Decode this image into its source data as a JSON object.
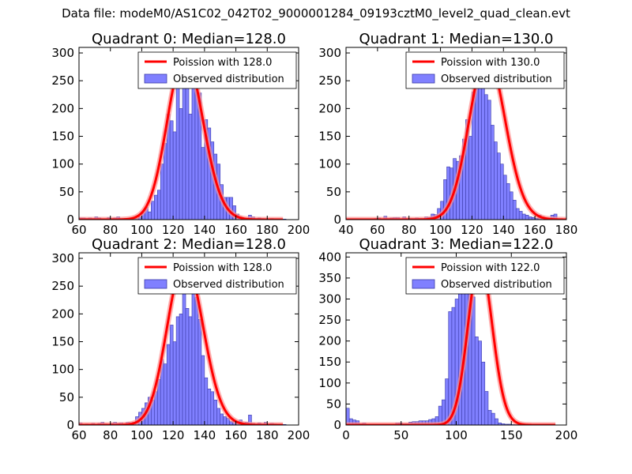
{
  "figure_title": "Data file: modeM0/AS1C02_042T02_9000001284_09193cztM0_level2_quad_clean.evt",
  "colors": {
    "bar_fill": "#8080ff",
    "bar_edge": "#3a3aa8",
    "curve": "#ff0000",
    "curve_halo": "#ff9090"
  },
  "chart_data": [
    {
      "type": "bar",
      "title": "Quadrant 0: Median=128.0",
      "xlim": [
        60,
        200
      ],
      "ylim": [
        0,
        310
      ],
      "xticks": [
        60,
        80,
        100,
        120,
        140,
        160,
        180,
        200
      ],
      "yticks": [
        0,
        50,
        100,
        150,
        200,
        250,
        300
      ],
      "legend": {
        "position": "top-right",
        "curve_label": "Poission with 128.0",
        "bar_label": "Observed distribution"
      },
      "poisson_mean": 128,
      "poisson_peak": 296,
      "bin_width": 2,
      "bins_start": 60,
      "counts": [
        3,
        3,
        2,
        3,
        2,
        5,
        3,
        1,
        1,
        4,
        2,
        3,
        5,
        2,
        2,
        2,
        2,
        1,
        2,
        5,
        12,
        22,
        14,
        33,
        44,
        53,
        100,
        137,
        190,
        178,
        158,
        247,
        200,
        300,
        260,
        190,
        258,
        290,
        228,
        130,
        180,
        165,
        140,
        118,
        100,
        63,
        40,
        40,
        40,
        25,
        10,
        5,
        3,
        2,
        8,
        5,
        2,
        3,
        2,
        1,
        1,
        2,
        1,
        1,
        1,
        1,
        0,
        0,
        0,
        0
      ]
    },
    {
      "type": "bar",
      "title": "Quadrant 1: Median=130.0",
      "xlim": [
        40,
        180
      ],
      "ylim": [
        0,
        310
      ],
      "xticks": [
        40,
        60,
        80,
        100,
        120,
        140,
        160,
        180
      ],
      "yticks": [
        0,
        50,
        100,
        150,
        200,
        250,
        300
      ],
      "legend": {
        "position": "top-right",
        "curve_label": "Poission with 130.0",
        "bar_label": "Observed distribution"
      },
      "poisson_mean": 130,
      "poisson_peak": 296,
      "bin_width": 2,
      "bins_start": 40,
      "counts": [
        0,
        0,
        0,
        0,
        0,
        0,
        0,
        0,
        0,
        2,
        3,
        1,
        6,
        2,
        3,
        4,
        4,
        1,
        5,
        2,
        2,
        2,
        3,
        2,
        2,
        5,
        4,
        10,
        9,
        20,
        33,
        72,
        95,
        93,
        110,
        105,
        115,
        145,
        180,
        150,
        230,
        270,
        290,
        260,
        225,
        215,
        170,
        140,
        120,
        100,
        80,
        65,
        50,
        35,
        20,
        15,
        10,
        8,
        5,
        4,
        2,
        8,
        5,
        2,
        2,
        8,
        10,
        0,
        0,
        0
      ]
    },
    {
      "type": "bar",
      "title": "Quadrant 2: Median=128.0",
      "xlim": [
        60,
        200
      ],
      "ylim": [
        0,
        310
      ],
      "xticks": [
        60,
        80,
        100,
        120,
        140,
        160,
        180,
        200
      ],
      "yticks": [
        0,
        50,
        100,
        150,
        200,
        250,
        300
      ],
      "legend": {
        "position": "top-right",
        "curve_label": "Poission with 128.0",
        "bar_label": "Observed distribution"
      },
      "poisson_mean": 128,
      "poisson_peak": 296,
      "bin_width": 2,
      "bins_start": 60,
      "counts": [
        4,
        0,
        2,
        1,
        3,
        1,
        3,
        5,
        2,
        1,
        3,
        5,
        3,
        4,
        1,
        5,
        4,
        5,
        15,
        23,
        30,
        40,
        50,
        45,
        60,
        82,
        118,
        110,
        145,
        180,
        150,
        195,
        200,
        300,
        210,
        195,
        290,
        230,
        190,
        125,
        85,
        65,
        60,
        45,
        30,
        20,
        15,
        12,
        6,
        7,
        5,
        9,
        4,
        5,
        18,
        3,
        2,
        4,
        2,
        5,
        2,
        3,
        2,
        1,
        1,
        1,
        0,
        0,
        0,
        0
      ]
    },
    {
      "type": "bar",
      "title": "Quadrant 3: Median=122.0",
      "xlim": [
        0,
        200
      ],
      "ylim": [
        0,
        410
      ],
      "xticks": [
        0,
        50,
        100,
        150,
        200
      ],
      "yticks": [
        0,
        50,
        100,
        150,
        200,
        250,
        300,
        350,
        400
      ],
      "legend": {
        "position": "top-right",
        "curve_label": "Poission with 122.0",
        "bar_label": "Observed distribution"
      },
      "poisson_mean": 122,
      "poisson_peak": 390,
      "bin_width": 3,
      "bins_start": 0,
      "counts": [
        40,
        15,
        12,
        10,
        3,
        5,
        1,
        2,
        1,
        1,
        2,
        2,
        2,
        2,
        2,
        5,
        5,
        3,
        3,
        7,
        8,
        8,
        10,
        10,
        10,
        13,
        15,
        20,
        45,
        60,
        110,
        270,
        280,
        300,
        370,
        390,
        380,
        360,
        305,
        210,
        200,
        150,
        80,
        35,
        28,
        15,
        5,
        3,
        2,
        2,
        1,
        1,
        1,
        1,
        0,
        0,
        0,
        0,
        0,
        0,
        0,
        0,
        0,
        0,
        0,
        0,
        0
      ]
    }
  ]
}
